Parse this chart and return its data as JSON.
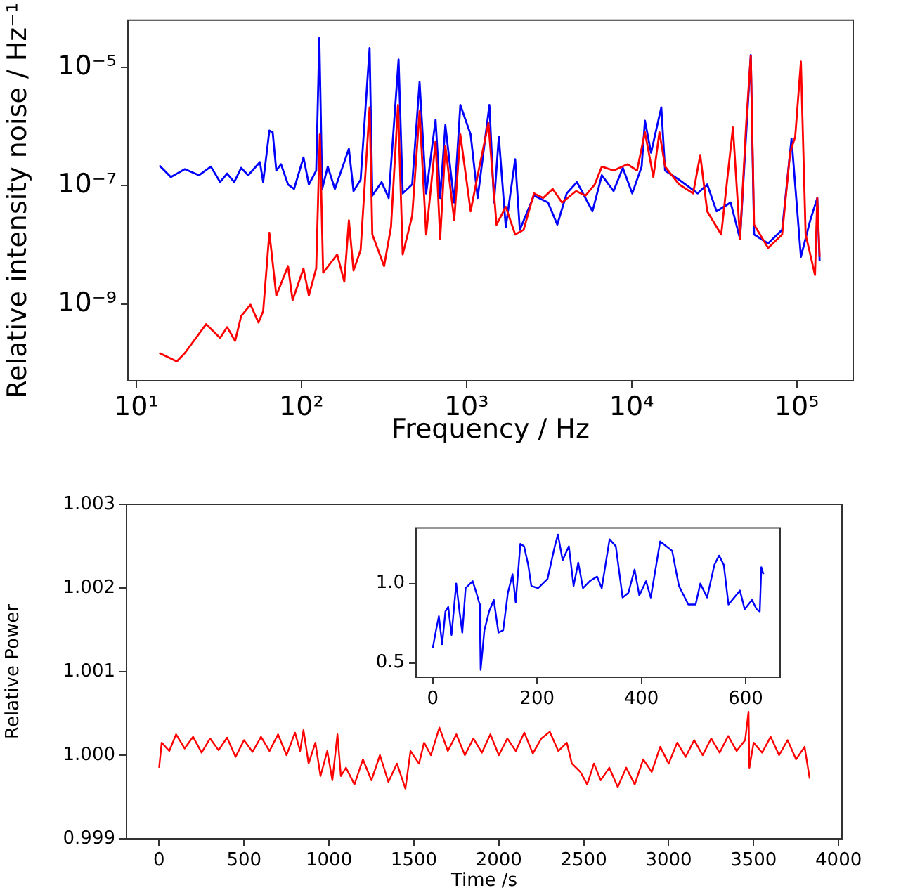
{
  "chart_data": [
    {
      "type": "line",
      "xlabel": "Frequency / Hz",
      "ylabel": "Relative intensity noise / Hz⁻¹",
      "log": "xy",
      "grid": false,
      "xlim": [
        8.9,
        220000
      ],
      "ylim": [
        5.1e-11,
        6.2e-05
      ],
      "xticks": [
        {
          "value": 10,
          "label": "10¹"
        },
        {
          "value": 100,
          "label": "10²"
        },
        {
          "value": 1000,
          "label": "10³"
        },
        {
          "value": 10000,
          "label": "10⁴"
        },
        {
          "value": 100000,
          "label": "10⁵"
        }
      ],
      "yticks": [
        {
          "value": 1e-09,
          "label": "10⁻⁹"
        },
        {
          "value": 1e-07,
          "label": "10⁻⁷"
        },
        {
          "value": 1e-05,
          "label": "10⁻⁵"
        }
      ],
      "series": [
        {
          "color": "#0000ff",
          "x": [
            13.8,
            16.2,
            19.7,
            24.0,
            28.3,
            32.2,
            35.5,
            39.2,
            43.2,
            47.6,
            56.1,
            58.7,
            64.0,
            67.0,
            70.5,
            75.3,
            83.0,
            90.3,
            103,
            111,
            123,
            128.5,
            133.7,
            144.5,
            159.6,
            178,
            194,
            207,
            228.5,
            259,
            269,
            306,
            338,
            388,
            411,
            469,
            520,
            570,
            650,
            693,
            745,
            843,
            918,
            1060,
            1169,
            1377,
            1469,
            1570,
            1730,
            1972,
            2104,
            2563,
            3119,
            3548,
            4046,
            4667,
            5797,
            6607,
            7780,
            8850,
            10090,
            11510,
            12050,
            13120,
            15140,
            15960,
            19410,
            25180,
            28710,
            32730,
            39810,
            45390,
            52720,
            55210,
            67140,
            81660,
            93040,
            106100,
            120800,
            133300,
            137700
          ],
          "values": [
            2.2e-07,
            1.4e-07,
            1.9e-07,
            1.5e-07,
            2.1e-07,
            1.15e-07,
            1.6e-07,
            1.15e-07,
            2e-07,
            1.5e-07,
            2.5e-07,
            1.15e-07,
            8.5e-07,
            8e-07,
            1.8e-07,
            2.3e-07,
            1.05e-07,
            8.8e-08,
            3e-07,
            1.05e-07,
            1.8e-07,
            3.1e-05,
            8.8e-08,
            2.1e-07,
            8.8e-08,
            2.1e-07,
            4.2e-07,
            8.1e-08,
            1.26e-07,
            2.1e-05,
            6.8e-08,
            1.15e-07,
            6.2e-08,
            1.35e-05,
            7.4e-08,
            1.05e-07,
            5.6e-06,
            7.4e-08,
            1.3e-06,
            6.2e-08,
            1.05e-06,
            5.2e-08,
            2.3e-06,
            7.3e-07,
            6.2e-08,
            2.3e-06,
            5.2e-08,
            6.7e-07,
            2e-08,
            2.8e-07,
            1.8e-08,
            6.8e-08,
            5.2e-08,
            2.2e-08,
            7.4e-08,
            1.15e-07,
            3.7e-08,
            1.5e-07,
            8.1e-08,
            2e-07,
            7.4e-08,
            2.1e-07,
            1.25e-06,
            3.6e-07,
            2.1e-06,
            1.8e-07,
            1.26e-07,
            7.4e-08,
            1.05e-07,
            3.7e-08,
            5.2e-08,
            1.27e-08,
            1.6e-05,
            1.5e-08,
            1.06e-08,
            1.8e-08,
            6.2e-07,
            6.3e-09,
            2.6e-08,
            6.2e-08,
            5.3e-09
          ]
        },
        {
          "color": "#ff0000",
          "x": [
            13.8,
            17.6,
            19.7,
            26.5,
            32.2,
            35.5,
            39.7,
            43.2,
            49.2,
            55.0,
            58.7,
            64.0,
            70.5,
            83.0,
            88.5,
            103,
            111,
            123,
            129.4,
            135.5,
            164.8,
            182,
            194,
            207,
            228.5,
            259,
            269,
            317,
            349,
            385,
            411,
            469,
            520,
            570,
            650,
            693,
            745,
            843,
            918,
            1060,
            1169,
            1358,
            1520,
            1730,
            1972,
            2218,
            2563,
            2918,
            3327,
            3793,
            4613,
            5260,
            5984,
            6607,
            7780,
            9460,
            10790,
            12050,
            13550,
            14750,
            15960,
            19410,
            23600,
            26060,
            28710,
            34910,
            41110,
            45390,
            49430,
            52720,
            55210,
            67140,
            81660,
            91200,
            97960,
            106100,
            113300,
            129100,
            133300,
            137700
          ],
          "values": [
            1.5e-10,
            1.08e-10,
            1.5e-10,
            4.6e-10,
            2.7e-10,
            4.1e-10,
            2.4e-10,
            6.3e-10,
            9.8e-10,
            4.9e-10,
            7.6e-10,
            1.6e-08,
            1.4e-09,
            4.4e-09,
            1.17e-09,
            4e-09,
            1.4e-09,
            4e-09,
            7.3e-07,
            3.4e-09,
            6.9e-09,
            2.4e-09,
            2.6e-08,
            3.7e-09,
            8.2e-09,
            2.1e-06,
            1.5e-08,
            4.4e-09,
            2e-08,
            2.3e-06,
            6.9e-09,
            3.1e-08,
            1.8e-06,
            1.5e-08,
            5.6e-07,
            1.27e-08,
            4.7e-07,
            2.6e-08,
            7.3e-07,
            3.7e-08,
            1.5e-07,
            1.14e-06,
            2.2e-08,
            4.4e-08,
            1.5e-08,
            1.8e-08,
            7.4e-08,
            6.2e-08,
            8.8e-08,
            5.2e-08,
            8.1e-08,
            6.8e-08,
            1.05e-07,
            2.1e-07,
            1.8e-07,
            2.3e-07,
            1.8e-07,
            8e-07,
            1.4e-07,
            8e-07,
            2.1e-07,
            1.05e-07,
            7.4e-08,
            3.3e-07,
            3.7e-08,
            1.5e-08,
            9.6e-07,
            1.27e-08,
            1.08e-06,
            1.56e-05,
            2.2e-08,
            8.9e-09,
            1.5e-08,
            3.6e-07,
            6.7e-07,
            1.24e-05,
            1.5e-08,
            3.1e-09,
            6.2e-08,
            6.3e-09
          ]
        }
      ]
    },
    {
      "type": "line",
      "xlabel": "Time /s",
      "ylabel": "Relative Power",
      "grid": false,
      "xlim": [
        -192,
        4020
      ],
      "ylim": [
        0.999,
        1.003
      ],
      "xticks": [
        0,
        500,
        1000,
        1500,
        2000,
        2500,
        3000,
        3500,
        4000
      ],
      "yticks": [
        0.999,
        {
          "value": 1,
          "label": "1.000"
        },
        1.001,
        1.002,
        1.003
      ],
      "series": [
        {
          "color": "#ff0000",
          "x": [
            0,
            15,
            60,
            100,
            150,
            200,
            250,
            300,
            350,
            400,
            450,
            500,
            550,
            600,
            650,
            700,
            750,
            800,
            830,
            850,
            880,
            920,
            950,
            990,
            1020,
            1050,
            1070,
            1100,
            1150,
            1200,
            1250,
            1300,
            1350,
            1400,
            1450,
            1480,
            1530,
            1560,
            1600,
            1650,
            1700,
            1750,
            1800,
            1850,
            1900,
            1950,
            2000,
            2050,
            2100,
            2150,
            2200,
            2250,
            2300,
            2350,
            2400,
            2430,
            2480,
            2520,
            2560,
            2600,
            2650,
            2700,
            2750,
            2800,
            2850,
            2900,
            2950,
            3000,
            3050,
            3100,
            3150,
            3200,
            3250,
            3300,
            3350,
            3400,
            3450,
            3470,
            3475,
            3500,
            3550,
            3600,
            3650,
            3700,
            3750,
            3800,
            3830
          ],
          "values": [
            0.99985,
            1.00015,
            1.00005,
            1.00025,
            1.00008,
            1.00022,
            1.00003,
            1.0002,
            1.00006,
            1.00021,
            0.99998,
            1.00018,
            1.00004,
            1.00022,
            1.00005,
            1.00025,
            1.0,
            1.00027,
            1.00005,
            1.0003,
            0.9999,
            1.00015,
            0.99975,
            1.00005,
            0.9997,
            1.00025,
            0.99975,
            0.99985,
            0.99965,
            0.99995,
            0.9997,
            1.0,
            0.99968,
            0.9999,
            0.9996,
            1.00005,
            0.9999,
            1.00015,
            1.0,
            1.00033,
            1.00005,
            1.00025,
            1.0,
            1.0002,
            1.00003,
            1.00025,
            1.0,
            1.0002,
            1.00005,
            1.00027,
            1.00002,
            1.0002,
            1.00028,
            1.00005,
            1.00015,
            0.9999,
            0.9998,
            0.99965,
            0.9999,
            0.9997,
            0.99985,
            0.99962,
            0.99985,
            0.99965,
            0.99995,
            0.9998,
            1.0001,
            0.9999,
            1.00015,
            0.99998,
            1.00018,
            1.0,
            1.0002,
            1.00003,
            1.00023,
            1.00005,
            1.00018,
            1.00052,
            0.99985,
            1.00015,
            1.00003,
            1.00022,
            1.0,
            1.00018,
            0.99995,
            1.0001,
            0.99972
          ]
        }
      ]
    },
    {
      "type": "line",
      "grid": false,
      "xlim": [
        -32,
        666
      ],
      "ylim": [
        0.41,
        1.35
      ],
      "xticks": [
        0,
        200,
        400,
        600
      ],
      "yticks": [
        0.5,
        {
          "value": 1,
          "label": "1.0"
        }
      ],
      "series": [
        {
          "color": "#0000ff",
          "x": [
            0,
            6.3,
            11.7,
            18,
            24.3,
            29.7,
            36,
            45,
            51.3,
            56.7,
            63,
            76.5,
            83.7,
            90,
            91.8,
            99,
            108,
            117,
            126,
            135,
            144,
            153,
            159,
            168,
            175,
            183,
            189,
            202,
            220,
            234,
            240,
            249,
            261,
            270,
            279,
            288,
            301,
            315,
            324,
            339,
            351,
            364,
            375,
            387,
            396,
            409,
            418,
            436,
            459,
            472,
            490,
            504,
            513,
            526,
            540,
            549,
            558,
            567,
            589,
            598,
            612,
            621,
            627,
            630,
            634
          ],
          "values": [
            0.594,
            0.706,
            0.794,
            0.618,
            0.824,
            0.853,
            0.676,
            1.0,
            0.824,
            0.691,
            0.971,
            1.015,
            0.941,
            0.868,
            0.456,
            0.706,
            0.824,
            0.897,
            0.691,
            0.706,
            0.941,
            1.059,
            0.882,
            1.25,
            1.235,
            1.118,
            0.985,
            0.971,
            1.029,
            1.235,
            1.309,
            1.147,
            1.235,
            0.985,
            1.132,
            0.971,
            1.015,
            1.044,
            0.971,
            1.279,
            1.235,
            0.912,
            0.941,
            1.088,
            0.926,
            1.015,
            0.912,
            1.265,
            1.206,
            0.985,
            0.868,
            0.868,
            1.0,
            0.912,
            1.118,
            1.176,
            1.118,
            0.868,
            0.956,
            0.838,
            0.897,
            0.838,
            0.824,
            1.103,
            1.059
          ]
        }
      ]
    }
  ]
}
